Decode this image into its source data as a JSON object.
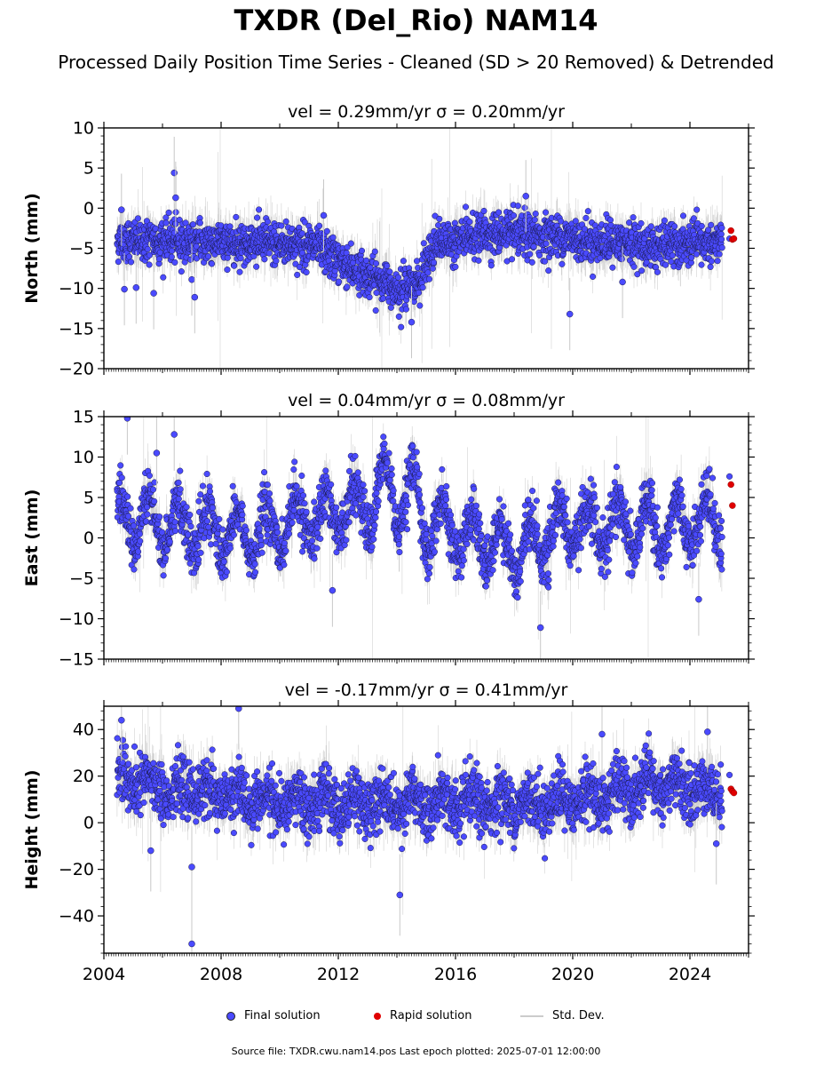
{
  "title": "TXDR (Del_Rio) NAM14",
  "subtitle": "Processed Daily Position Time Series - Cleaned (SD > 20 Removed) & Detrended",
  "legend": {
    "final": "Final solution",
    "rapid": "Rapid solution",
    "std": "Std. Dev."
  },
  "footer": "Source file: TXDR.cwu.nam14.pos  Last epoch plotted: 2025-07-01 12:00:00",
  "colors": {
    "final": "#4a4aff",
    "rapid": "#e00000",
    "std": "#cccccc"
  },
  "chart_data": [
    {
      "type": "scatter",
      "title_vel": "vel = 0.29mm/yr",
      "title_sigma": "σ = 0.20mm/yr",
      "ylabel": "North (mm)",
      "ylim": [
        -20,
        10
      ],
      "yticks": [
        -20,
        -15,
        -10,
        -5,
        0,
        5,
        10
      ],
      "xlim": [
        2004,
        2026
      ],
      "trend": [
        [
          2004.5,
          -4
        ],
        [
          2009.5,
          -4.3
        ],
        [
          2011,
          -4.6
        ],
        [
          2012,
          -6.5
        ],
        [
          2013,
          -8.5
        ],
        [
          2014.2,
          -10
        ],
        [
          2014.8,
          -9
        ],
        [
          2015.3,
          -4.5
        ],
        [
          2017,
          -3.2
        ],
        [
          2019.5,
          -3.5
        ],
        [
          2021,
          -4.3
        ],
        [
          2023,
          -4.8
        ],
        [
          2025,
          -4.3
        ]
      ],
      "rapid": [
        [
          2025.4,
          -2.8
        ],
        [
          2025.45,
          -3.9
        ],
        [
          2025.5,
          -3.8
        ]
      ],
      "outliers": [
        [
          2004.6,
          -0.2
        ],
        [
          2004.7,
          -10.1
        ],
        [
          2005.1,
          -9.9
        ],
        [
          2005.7,
          -10.6
        ],
        [
          2006.4,
          4.4
        ],
        [
          2006.45,
          1.3
        ],
        [
          2007,
          -8.9
        ],
        [
          2007.1,
          -11.1
        ],
        [
          2018.4,
          1.5
        ],
        [
          2019.9,
          -13.2
        ],
        [
          2014.5,
          -14.2
        ],
        [
          2021.7,
          -9.2
        ],
        [
          2011.5,
          -0.9
        ]
      ]
    },
    {
      "type": "scatter",
      "title_vel": "vel = 0.04mm/yr",
      "title_sigma": "σ = 0.08mm/yr",
      "ylabel": "East (mm)",
      "ylim": [
        -15,
        15
      ],
      "yticks": [
        -15,
        -10,
        -5,
        0,
        5,
        10,
        15
      ],
      "xlim": [
        2004,
        2026
      ],
      "trend": [
        [
          2004.5,
          2.5
        ],
        [
          2009,
          0.2
        ],
        [
          2012,
          3.5
        ],
        [
          2014,
          5.5
        ],
        [
          2016,
          0.5
        ],
        [
          2018,
          -1.5
        ],
        [
          2020,
          1.5
        ],
        [
          2023,
          1.5
        ],
        [
          2025,
          2.5
        ]
      ],
      "rapid": [
        [
          2025.4,
          6.6
        ],
        [
          2025.45,
          4.0
        ]
      ],
      "outliers": [
        [
          2004.8,
          14.8
        ],
        [
          2005.8,
          10.5
        ],
        [
          2006.4,
          12.8
        ],
        [
          2018.9,
          -11.1
        ],
        [
          2024.3,
          -7.6
        ],
        [
          2011.8,
          -6.5
        ]
      ]
    },
    {
      "type": "scatter",
      "title_vel": "vel = -0.17mm/yr",
      "title_sigma": "σ = 0.41mm/yr",
      "ylabel": "Height (mm)",
      "ylim": [
        -56,
        50
      ],
      "yticks": [
        -40,
        -20,
        0,
        20,
        40
      ],
      "xlim": [
        2004,
        2026
      ],
      "trend": [
        [
          2004.5,
          17
        ],
        [
          2007,
          14
        ],
        [
          2010,
          8
        ],
        [
          2014,
          9
        ],
        [
          2018,
          8
        ],
        [
          2020,
          9
        ],
        [
          2023,
          16
        ],
        [
          2025,
          13
        ]
      ],
      "rapid": [
        [
          2025.4,
          14.5
        ],
        [
          2025.45,
          13.5
        ],
        [
          2025.5,
          12.8
        ]
      ],
      "outliers": [
        [
          2004.6,
          44
        ],
        [
          2005.6,
          -12
        ],
        [
          2007,
          -19
        ],
        [
          2007,
          -52
        ],
        [
          2008.6,
          49
        ],
        [
          2014.1,
          -31
        ],
        [
          2021,
          38
        ],
        [
          2024.6,
          39
        ],
        [
          2024.9,
          -9
        ]
      ]
    }
  ],
  "xticks": [
    "2004",
    "2008",
    "2012",
    "2016",
    "2020",
    "2024"
  ],
  "xtick_values": [
    2004,
    2008,
    2012,
    2016,
    2020,
    2024
  ]
}
